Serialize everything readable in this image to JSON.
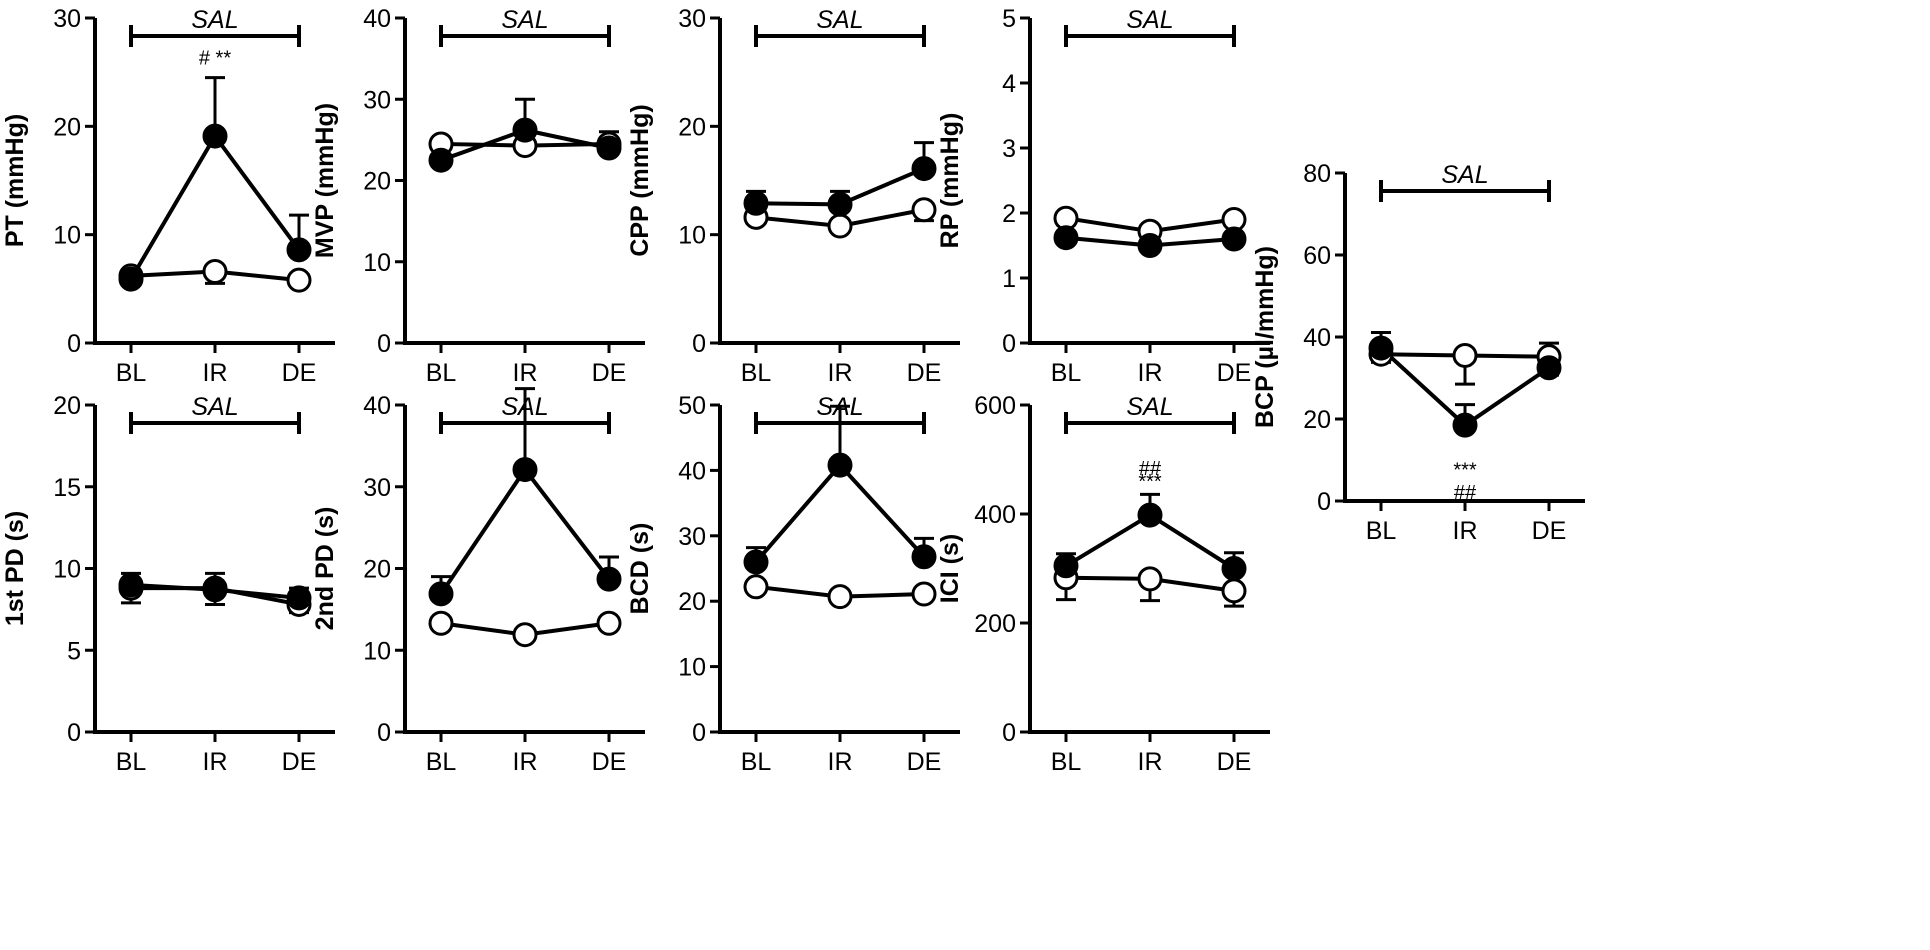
{
  "colors": {
    "ink": "#000000",
    "open_marker_fill": "#ffffff",
    "filled_marker_fill": "#000000"
  },
  "chart_data": [
    {
      "id": "pt",
      "type": "line",
      "ylabel": "PT (mmHg)",
      "ylim": [
        0,
        30
      ],
      "yticks": [
        "0",
        "10",
        "20",
        "30"
      ],
      "categories": [
        "BL",
        "IR",
        "DE"
      ],
      "bracket_label": "SAL",
      "series": [
        {
          "name": "open",
          "fill": "open",
          "values": [
            6.2,
            6.6,
            5.8
          ],
          "errors": [
            0.3,
            1.1,
            0.4
          ]
        },
        {
          "name": "filled",
          "fill": "filled",
          "values": [
            5.9,
            19.1,
            8.6
          ],
          "errors": [
            0.3,
            5.4,
            3.2
          ]
        }
      ],
      "annotations": [
        {
          "text": "# **",
          "category": "IR",
          "value": 25.7
        }
      ]
    },
    {
      "id": "mvp",
      "type": "line",
      "ylabel": "MVP (mmHg)",
      "ylim": [
        0,
        40
      ],
      "yticks": [
        "0",
        "10",
        "20",
        "30",
        "40"
      ],
      "categories": [
        "BL",
        "IR",
        "DE"
      ],
      "bracket_label": "SAL",
      "series": [
        {
          "name": "open",
          "fill": "open",
          "values": [
            24.5,
            24.3,
            24.5
          ],
          "errors": [
            0.3,
            0.3,
            0.5
          ]
        },
        {
          "name": "filled",
          "fill": "filled",
          "values": [
            22.5,
            26.2,
            24.0
          ],
          "errors": [
            0.5,
            3.8,
            2.0
          ]
        }
      ],
      "annotations": []
    },
    {
      "id": "cpp",
      "type": "line",
      "ylabel": "CPP (mmHg)",
      "ylim": [
        0,
        30
      ],
      "yticks": [
        "0",
        "10",
        "20",
        "30"
      ],
      "categories": [
        "BL",
        "IR",
        "DE"
      ],
      "bracket_label": "SAL",
      "series": [
        {
          "name": "open",
          "fill": "open",
          "values": [
            11.6,
            10.8,
            12.3
          ],
          "errors": [
            0.4,
            0.4,
            1.0
          ]
        },
        {
          "name": "filled",
          "fill": "filled",
          "values": [
            12.9,
            12.8,
            16.1
          ],
          "errors": [
            1.1,
            1.2,
            2.4
          ]
        }
      ],
      "annotations": []
    },
    {
      "id": "rp",
      "type": "line",
      "ylabel": "RP (mmHg)",
      "ylim": [
        0,
        5
      ],
      "yticks": [
        "0",
        "1",
        "2",
        "3",
        "4",
        "5"
      ],
      "categories": [
        "BL",
        "IR",
        "DE"
      ],
      "bracket_label": "SAL",
      "series": [
        {
          "name": "open",
          "fill": "open",
          "values": [
            1.92,
            1.72,
            1.9
          ],
          "errors": [
            0.2,
            0.17,
            0.22
          ]
        },
        {
          "name": "filled",
          "fill": "filled",
          "values": [
            1.62,
            1.5,
            1.6
          ],
          "errors": [
            0.2,
            0.14,
            0.06
          ]
        }
      ],
      "annotations": []
    },
    {
      "id": "bcp",
      "type": "line",
      "ylabel": "BCP (µl/mmHg)",
      "ylim": [
        0,
        80
      ],
      "yticks": [
        "0",
        "20",
        "40",
        "60",
        "80"
      ],
      "categories": [
        "BL",
        "IR",
        "DE"
      ],
      "bracket_label": "SAL",
      "series": [
        {
          "name": "open",
          "fill": "open",
          "values": [
            35.8,
            35.5,
            35.2
          ],
          "errors": [
            2.0,
            7.0,
            4.5
          ]
        },
        {
          "name": "filled",
          "fill": "filled",
          "values": [
            37.3,
            18.5,
            32.5
          ],
          "errors": [
            3.8,
            5.0,
            6.0
          ]
        }
      ],
      "annotations": [
        {
          "text": "***",
          "category": "IR",
          "value": 6.0
        },
        {
          "text": "##",
          "category": "IR",
          "value": 0.5
        }
      ]
    },
    {
      "id": "pd1",
      "type": "line",
      "ylabel": "1st PD (s)",
      "ylim": [
        0,
        20
      ],
      "yticks": [
        "0",
        "5",
        "10",
        "15",
        "20"
      ],
      "categories": [
        "BL",
        "IR",
        "DE"
      ],
      "bracket_label": "SAL",
      "series": [
        {
          "name": "open",
          "fill": "open",
          "values": [
            8.8,
            8.8,
            7.8
          ],
          "errors": [
            0.9,
            1.0,
            0.5
          ]
        },
        {
          "name": "filled",
          "fill": "filled",
          "values": [
            9.0,
            8.7,
            8.2
          ],
          "errors": [
            0.7,
            1.0,
            0.6
          ]
        }
      ],
      "annotations": []
    },
    {
      "id": "pd2",
      "type": "line",
      "ylabel": "2nd PD (s)",
      "ylim": [
        0,
        40
      ],
      "yticks": [
        "0",
        "10",
        "20",
        "30",
        "40"
      ],
      "categories": [
        "BL",
        "IR",
        "DE"
      ],
      "bracket_label": "SAL",
      "series": [
        {
          "name": "open",
          "fill": "open",
          "values": [
            13.3,
            11.9,
            13.3
          ],
          "errors": [
            0.6,
            0.3,
            0.4
          ]
        },
        {
          "name": "filled",
          "fill": "filled",
          "values": [
            16.9,
            32.1,
            18.7
          ],
          "errors": [
            2.1,
            9.9,
            2.7
          ]
        }
      ],
      "annotations": []
    },
    {
      "id": "bcd",
      "type": "line",
      "ylabel": "BCD (s)",
      "ylim": [
        0,
        50
      ],
      "yticks": [
        "0",
        "10",
        "20",
        "30",
        "40",
        "50"
      ],
      "categories": [
        "BL",
        "IR",
        "DE"
      ],
      "bracket_label": "SAL",
      "series": [
        {
          "name": "open",
          "fill": "open",
          "values": [
            22.2,
            20.7,
            21.1
          ],
          "errors": [
            0.4,
            0.4,
            0.5
          ]
        },
        {
          "name": "filled",
          "fill": "filled",
          "values": [
            26.0,
            40.8,
            26.8
          ],
          "errors": [
            2.2,
            9.0,
            2.8
          ]
        }
      ],
      "annotations": []
    },
    {
      "id": "ici",
      "type": "line",
      "ylabel": "ICI (s)",
      "ylim": [
        0,
        600
      ],
      "yticks": [
        "0",
        "200",
        "400",
        "600"
      ],
      "categories": [
        "BL",
        "IR",
        "DE"
      ],
      "bracket_label": "SAL",
      "series": [
        {
          "name": "open",
          "fill": "open",
          "values": [
            283,
            281,
            259
          ],
          "errors": [
            40,
            40,
            28
          ]
        },
        {
          "name": "filled",
          "fill": "filled",
          "values": [
            305,
            398,
            300
          ],
          "errors": [
            22,
            38,
            29
          ]
        }
      ],
      "annotations": [
        {
          "text": "##",
          "category": "IR",
          "value": 472
        },
        {
          "text": "***",
          "category": "IR",
          "value": 448
        }
      ]
    }
  ]
}
